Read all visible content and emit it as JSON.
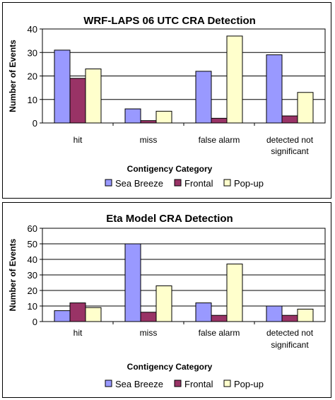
{
  "chart_data": [
    {
      "type": "bar",
      "title": "WRF-LAPS 06 UTC CRA Detection",
      "xlabel": "Contigency Category",
      "ylabel": "Number of Events",
      "categories": [
        [
          "hit"
        ],
        [
          "miss"
        ],
        [
          "false alarm"
        ],
        [
          "detected not",
          "significant"
        ]
      ],
      "ylim": [
        0,
        40
      ],
      "yticks": [
        0,
        10,
        20,
        30,
        40
      ],
      "grid": true,
      "legend_position": "bottom",
      "series": [
        {
          "name": "Sea Breeze",
          "color": "#9999ff",
          "values": [
            31,
            6,
            22,
            29
          ]
        },
        {
          "name": "Frontal",
          "color": "#993366",
          "values": [
            19,
            1,
            2,
            3
          ]
        },
        {
          "name": "Pop-up",
          "color": "#ffffcc",
          "values": [
            23,
            5,
            37,
            13
          ]
        }
      ]
    },
    {
      "type": "bar",
      "title": "Eta Model CRA Detection",
      "xlabel": "Contigency Category",
      "ylabel": "Number of Events",
      "categories": [
        [
          "hit"
        ],
        [
          "miss"
        ],
        [
          "false alarm"
        ],
        [
          "detected not",
          "significant"
        ]
      ],
      "ylim": [
        0,
        60
      ],
      "yticks": [
        0,
        10,
        20,
        30,
        40,
        50,
        60
      ],
      "grid": true,
      "legend_position": "bottom",
      "series": [
        {
          "name": "Sea Breeze",
          "color": "#9999ff",
          "values": [
            7,
            50,
            12,
            10
          ]
        },
        {
          "name": "Frontal",
          "color": "#993366",
          "values": [
            12,
            6,
            4,
            4
          ]
        },
        {
          "name": "Pop-up",
          "color": "#ffffcc",
          "values": [
            9,
            23,
            37,
            8
          ]
        }
      ]
    }
  ]
}
